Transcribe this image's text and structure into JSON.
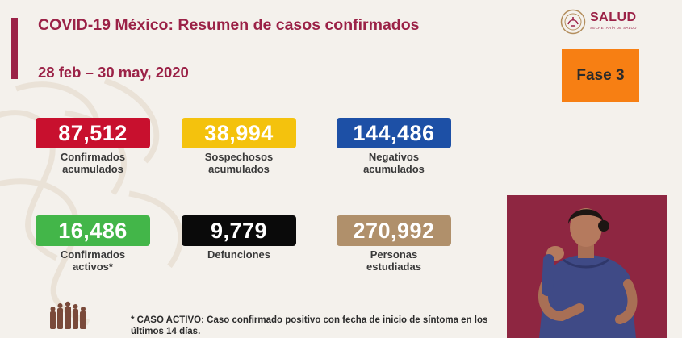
{
  "header": {
    "title": "COVID-19 México: Resumen de casos confirmados",
    "date_range": "28 feb – 30 may, 2020",
    "phase": "Fase 3"
  },
  "logo": {
    "name": "SALUD",
    "subtitle": "SECRETARÍA DE SALUD"
  },
  "stats": [
    {
      "value": "87,512",
      "label": "Confirmados\nacumulados",
      "color": "#c8102e"
    },
    {
      "value": "38,994",
      "label": "Sospechosos\nacumulados",
      "color": "#f4c20d"
    },
    {
      "value": "144,486",
      "label": "Negativos\nacumulados",
      "color": "#1d50a6"
    },
    {
      "value": "16,486",
      "label": "Confirmados\nactivos*",
      "color": "#43b649"
    },
    {
      "value": "9,779",
      "label": "Defunciones",
      "color": "#0a0a0a"
    },
    {
      "value": "270,992",
      "label": "Personas\nestudiadas",
      "color": "#b0906b"
    }
  ],
  "footnote": "* CASO ACTIVO: Caso confirmado positivo con fecha de inicio de síntoma en los últimos 14 días.",
  "colors": {
    "brand": "#9b2247",
    "phase_bg": "#f77f13",
    "background": "#f4f1ec"
  }
}
